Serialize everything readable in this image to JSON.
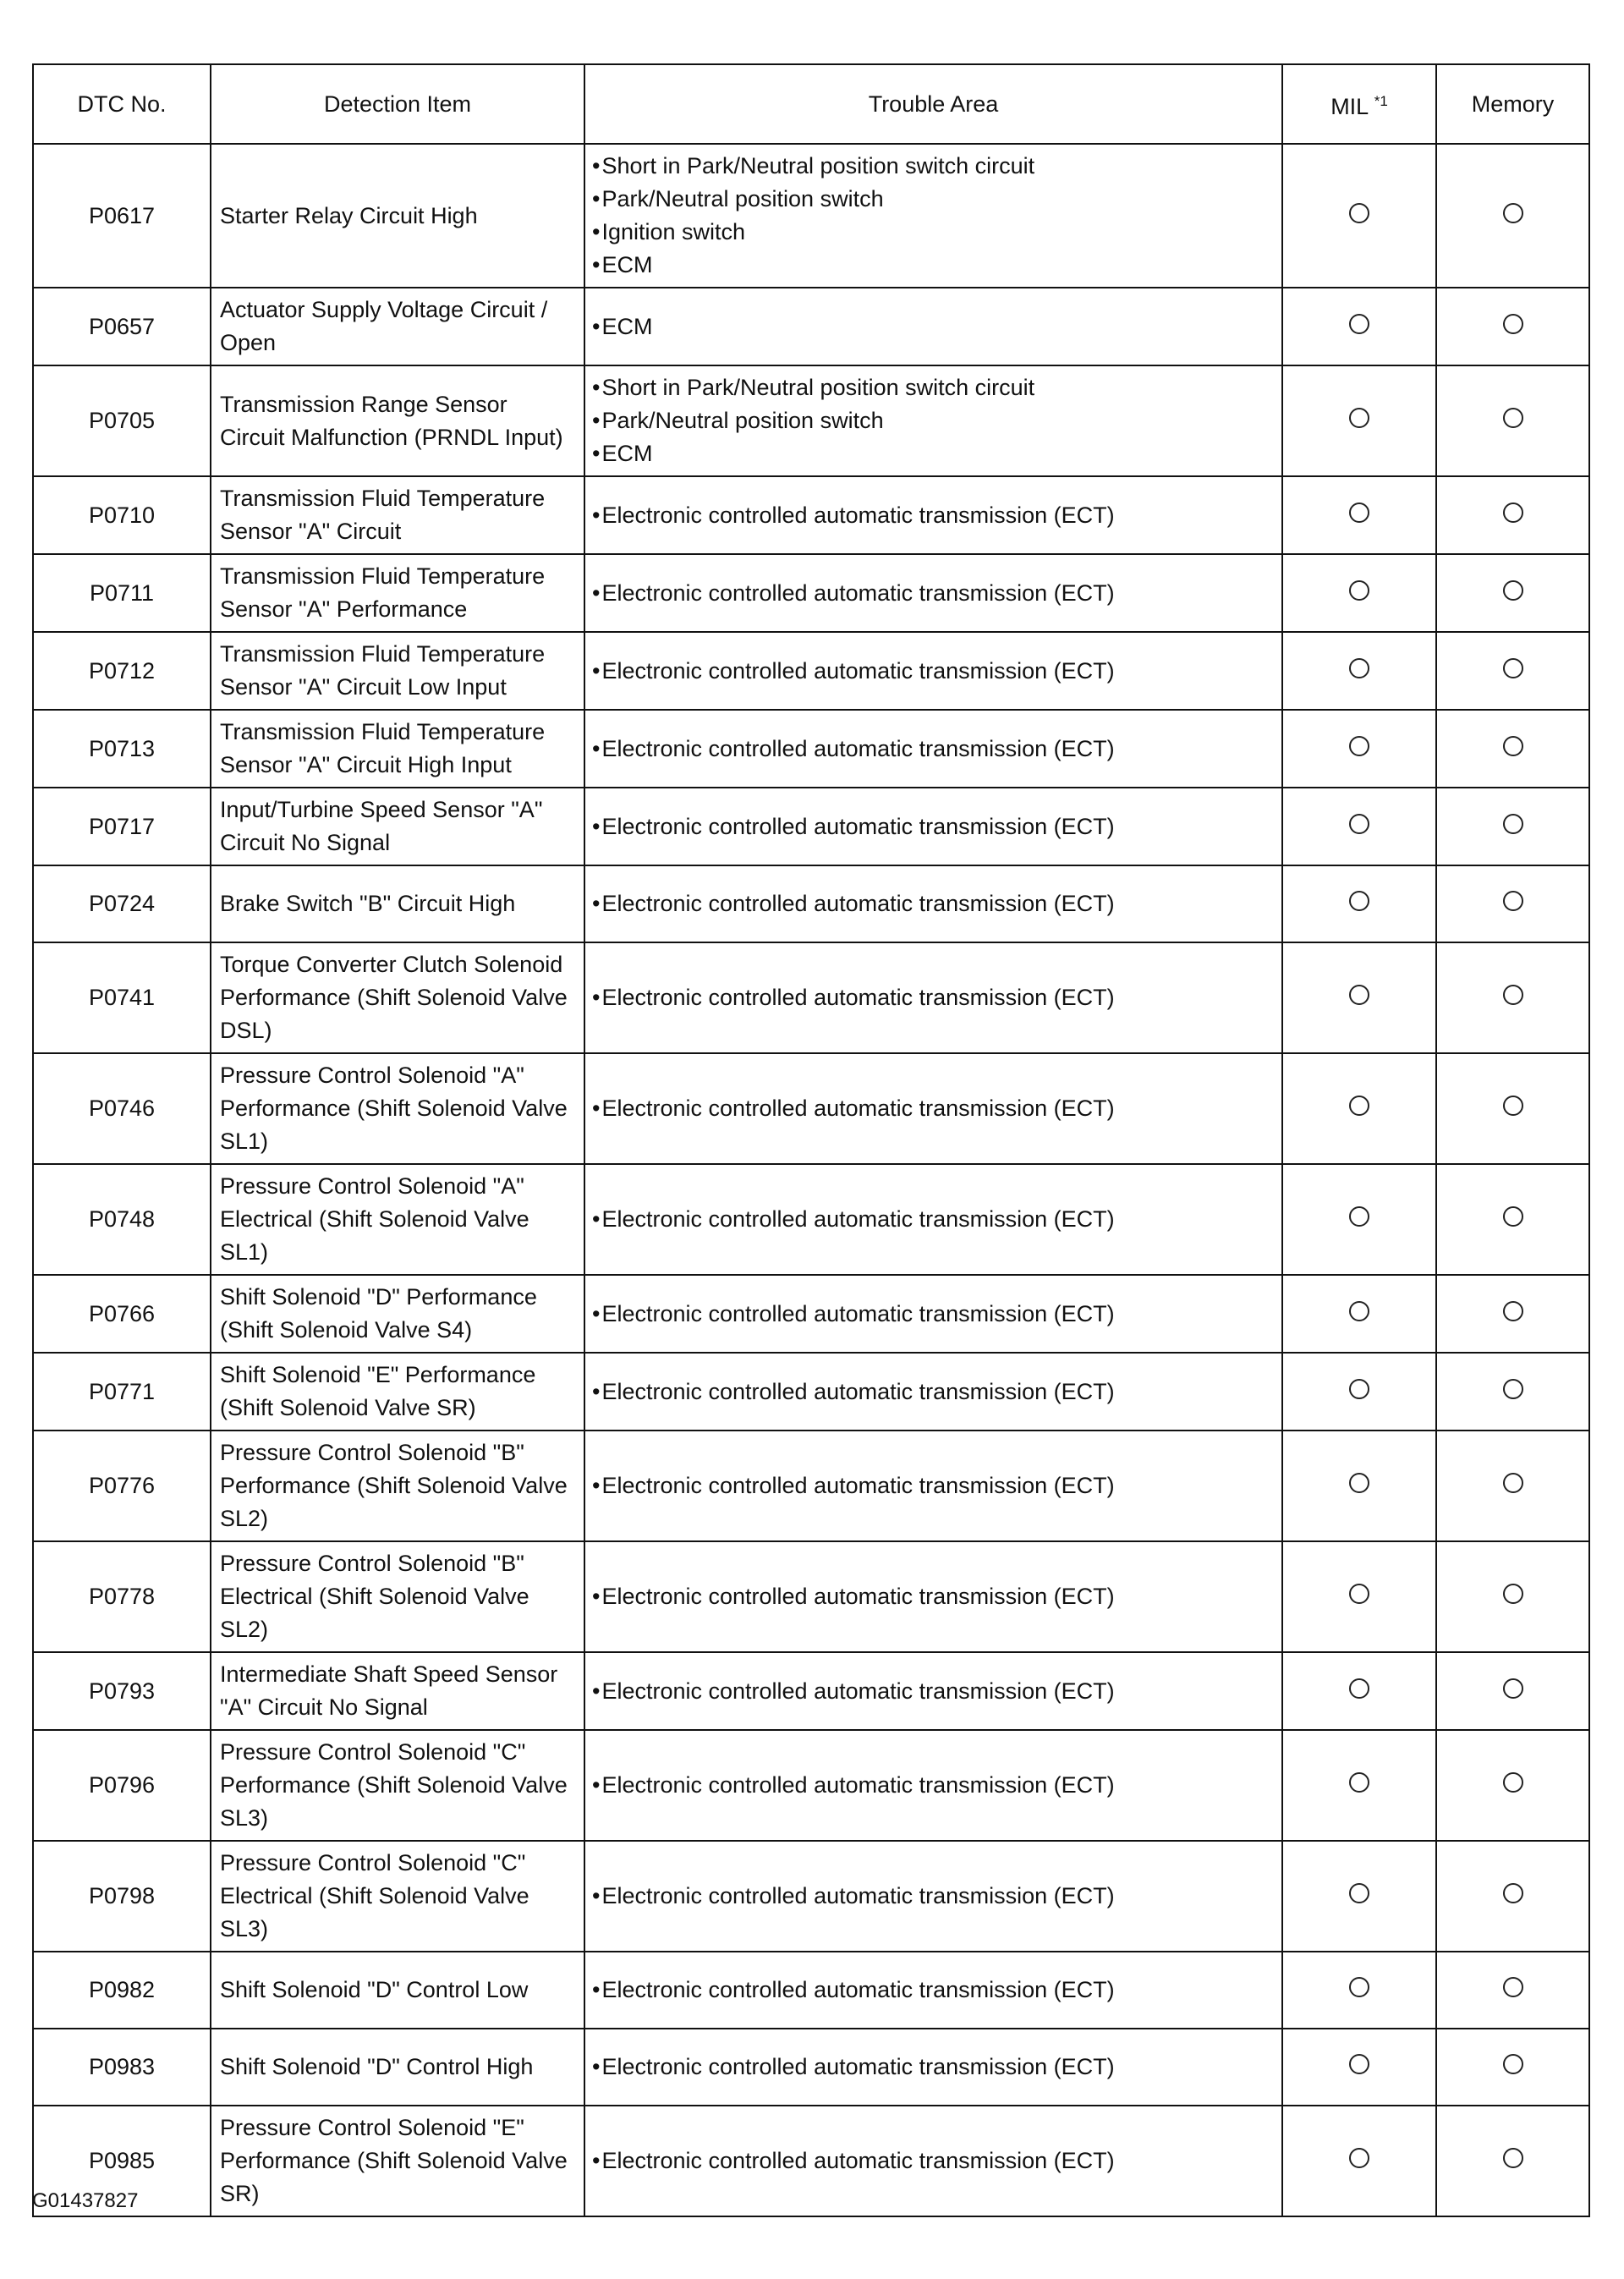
{
  "headers": {
    "dtc": "DTC No.",
    "item": "Detection Item",
    "area": "Trouble Area",
    "mil": "MIL",
    "mil_note": "*1",
    "memory": "Memory"
  },
  "rows": [
    {
      "dtc": "P0617",
      "item": "Starter Relay Circuit High",
      "area": [
        "Short in Park/Neutral position switch circuit",
        "Park/Neutral position switch",
        "Ignition switch",
        "ECM"
      ]
    },
    {
      "dtc": "P0657",
      "item": "Actuator Supply Voltage Circuit / Open",
      "area": [
        "ECM"
      ]
    },
    {
      "dtc": "P0705",
      "item": "Transmission Range Sensor Circuit Malfunction (PRNDL Input)",
      "area": [
        "Short in Park/Neutral position switch circuit",
        "Park/Neutral position switch",
        "ECM"
      ]
    },
    {
      "dtc": "P0710",
      "item": "Transmission Fluid Temperature Sensor \"A\" Circuit",
      "area": [
        "Electronic controlled automatic transmission (ECT)"
      ]
    },
    {
      "dtc": "P0711",
      "item": "Transmission Fluid Temperature Sensor \"A\" Performance",
      "area": [
        "Electronic controlled automatic transmission (ECT)"
      ]
    },
    {
      "dtc": "P0712",
      "item": "Transmission Fluid Temperature Sensor \"A\" Circuit Low Input",
      "area": [
        "Electronic controlled automatic transmission (ECT)"
      ]
    },
    {
      "dtc": "P0713",
      "item": "Transmission Fluid Temperature Sensor \"A\" Circuit High Input",
      "area": [
        "Electronic controlled automatic transmission (ECT)"
      ]
    },
    {
      "dtc": "P0717",
      "item": "Input/Turbine Speed Sensor \"A\" Circuit No Signal",
      "area": [
        "Electronic controlled automatic transmission (ECT)"
      ]
    },
    {
      "dtc": "P0724",
      "item": "Brake Switch \"B\" Circuit High",
      "area": [
        "Electronic controlled automatic transmission (ECT)"
      ]
    },
    {
      "dtc": "P0741",
      "item": "Torque Converter Clutch Solenoid Performance (Shift Solenoid Valve DSL)",
      "area": [
        "Electronic controlled automatic transmission (ECT)"
      ]
    },
    {
      "dtc": "P0746",
      "item": "Pressure Control Solenoid \"A\" Performance (Shift Solenoid Valve SL1)",
      "area": [
        "Electronic controlled automatic transmission (ECT)"
      ]
    },
    {
      "dtc": "P0748",
      "item": "Pressure Control Solenoid \"A\" Electrical (Shift Solenoid Valve SL1)",
      "area": [
        "Electronic controlled automatic transmission (ECT)"
      ]
    },
    {
      "dtc": "P0766",
      "item": "Shift Solenoid \"D\" Performance (Shift Solenoid Valve S4)",
      "area": [
        "Electronic controlled automatic transmission (ECT)"
      ]
    },
    {
      "dtc": "P0771",
      "item": "Shift Solenoid \"E\" Performance (Shift Solenoid Valve SR)",
      "area": [
        "Electronic controlled automatic transmission (ECT)"
      ]
    },
    {
      "dtc": "P0776",
      "item": "Pressure Control Solenoid \"B\" Performance (Shift Solenoid Valve SL2)",
      "area": [
        "Electronic controlled automatic transmission (ECT)"
      ]
    },
    {
      "dtc": "P0778",
      "item": "Pressure Control Solenoid \"B\" Electrical (Shift Solenoid Valve SL2)",
      "area": [
        "Electronic controlled automatic transmission (ECT)"
      ]
    },
    {
      "dtc": "P0793",
      "item": "Intermediate Shaft Speed Sensor \"A\" Circuit No Signal",
      "area": [
        "Electronic controlled automatic transmission (ECT)"
      ]
    },
    {
      "dtc": "P0796",
      "item": "Pressure Control Solenoid \"C\" Performance (Shift Solenoid Valve SL3)",
      "area": [
        "Electronic controlled automatic transmission (ECT)"
      ]
    },
    {
      "dtc": "P0798",
      "item": "Pressure Control Solenoid \"C\" Electrical (Shift Solenoid Valve SL3)",
      "area": [
        "Electronic controlled automatic transmission (ECT)"
      ]
    },
    {
      "dtc": "P0982",
      "item": "Shift Solenoid \"D\" Control Low",
      "area": [
        "Electronic controlled automatic transmission (ECT)"
      ]
    },
    {
      "dtc": "P0983",
      "item": "Shift Solenoid \"D\" Control High",
      "area": [
        "Electronic controlled automatic transmission (ECT)"
      ]
    },
    {
      "dtc": "P0985",
      "item": "Pressure Control Solenoid \"E\" Performance (Shift Solenoid Valve SR)",
      "area": [
        "Electronic controlled automatic transmission (ECT)"
      ]
    }
  ],
  "mil_symbol": "circle-icon",
  "memory_symbol": "circle-icon",
  "figure_code": "G01437827"
}
